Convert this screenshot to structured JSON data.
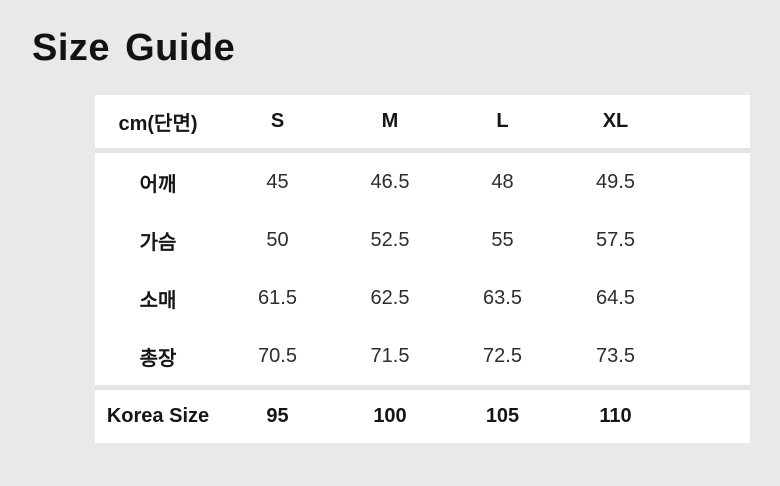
{
  "page": {
    "title": "Size Guide"
  },
  "colors": {
    "page_background": "#e9e9e9",
    "table_background": "#ffffff",
    "separator": "#e4e4e4",
    "text_bold": "#161616",
    "text_value": "#2d2d2d"
  },
  "table": {
    "unit_label": "cm(단면)",
    "header_sizes": [
      "S",
      "M",
      "L",
      "XL"
    ],
    "rows": [
      {
        "label": "어깨",
        "values": [
          "45",
          "46.5",
          "48",
          "49.5"
        ]
      },
      {
        "label": "가슴",
        "values": [
          "50",
          "52.5",
          "55",
          "57.5"
        ]
      },
      {
        "label": "소매",
        "values": [
          "61.5",
          "62.5",
          "63.5",
          "64.5"
        ]
      },
      {
        "label": "총장",
        "values": [
          "70.5",
          "71.5",
          "72.5",
          "73.5"
        ]
      }
    ],
    "footer": {
      "label": "Korea Size",
      "values": [
        "95",
        "100",
        "105",
        "110"
      ]
    }
  }
}
